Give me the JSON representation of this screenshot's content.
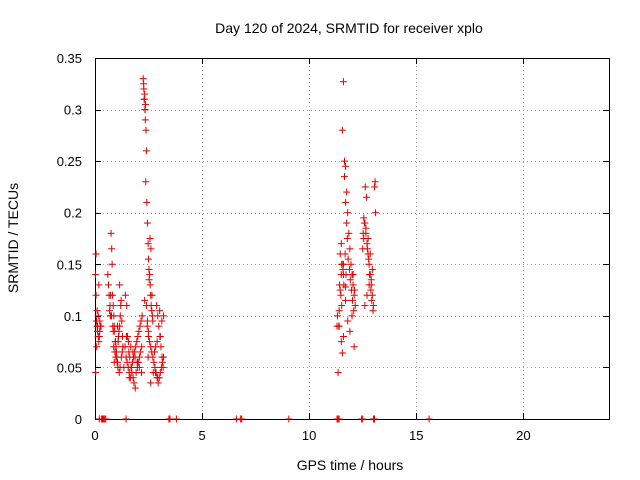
{
  "chart_data": {
    "type": "scatter",
    "title": "Day 120 of 2024, SRMTID for receiver xplo",
    "xlabel": "GPS time / hours",
    "ylabel": "SRMTID / TECUs",
    "xlim": [
      0,
      24
    ],
    "ylim": [
      0,
      0.35
    ],
    "x_ticks": [
      0,
      5,
      10,
      15,
      20
    ],
    "y_ticks": [
      0,
      0.05,
      0.1,
      0.15,
      0.2,
      0.25,
      0.3,
      0.35
    ],
    "x_tick_labels": [
      "0",
      "5",
      "10",
      "15",
      "20"
    ],
    "y_tick_labels": [
      "0",
      "0.05",
      "0.1",
      "0.15",
      "0.2",
      "0.25",
      "0.3",
      "0.35"
    ],
    "grid": true,
    "marker": "plus",
    "color": "#e00000",
    "series": [
      {
        "x": [
          0.02,
          0.05,
          0.07,
          0.1,
          0.12,
          0.15,
          0.18,
          0.2,
          0.22,
          0.25,
          0.05,
          0.1,
          0.15,
          0.08,
          0.12,
          0.18,
          0.22,
          0.03,
          0.28,
          0.6,
          0.63,
          0.66,
          0.7,
          0.72,
          0.75,
          0.78,
          0.8,
          0.82,
          0.85,
          0.88,
          0.9,
          0.92,
          0.95,
          0.98,
          1.0,
          1.02,
          1.05,
          1.08,
          1.1,
          1.12,
          1.15,
          1.18,
          1.2,
          1.22,
          1.25,
          1.28,
          1.3,
          0.68,
          0.73,
          0.77,
          0.83,
          0.87,
          0.93,
          0.97,
          1.03,
          1.07,
          1.13,
          1.17,
          1.23,
          1.27,
          1.4,
          1.45,
          1.5,
          1.55,
          1.6,
          1.65,
          1.7,
          1.75,
          1.8,
          1.85,
          1.9,
          1.95,
          2.0,
          2.05,
          2.1,
          2.15,
          2.2,
          1.42,
          1.48,
          1.52,
          1.58,
          1.62,
          1.68,
          1.72,
          1.78,
          1.82,
          1.88,
          1.92,
          1.98,
          2.02,
          2.08,
          2.12,
          2.18,
          1.47,
          1.57,
          1.67,
          1.77,
          1.87,
          1.97,
          2.07,
          2.17,
          2.25,
          2.28,
          2.3,
          2.33,
          2.35,
          2.38,
          2.4,
          2.32,
          2.36,
          2.27,
          2.3,
          2.34,
          2.37,
          2.42,
          2.45,
          2.48,
          2.5,
          2.52,
          2.55,
          2.58,
          2.6,
          2.62,
          2.65,
          2.68,
          2.7,
          2.44,
          2.49,
          2.53,
          2.57,
          2.61,
          2.66,
          2.4,
          2.45,
          2.5,
          2.55,
          2.6,
          2.65,
          2.7,
          2.75,
          2.8,
          2.85,
          2.9,
          2.95,
          3.0,
          3.05,
          3.1,
          3.15,
          3.2,
          2.78,
          2.83,
          2.88,
          2.93,
          2.98,
          3.03,
          3.08,
          3.13,
          3.18,
          2.82,
          2.92,
          3.02,
          3.12,
          0.85,
          0.95,
          1.15,
          2.32,
          2.48,
          2.6,
          2.72,
          0.9,
          1.05,
          1.35,
          1.6,
          2.0,
          2.9,
          3.05,
          3.2,
          11.3,
          11.35,
          11.4,
          11.45,
          11.5,
          11.55,
          11.6,
          11.65,
          11.7,
          11.75,
          11.8,
          11.85,
          11.9,
          11.95,
          12.0,
          12.05,
          12.1,
          12.15,
          11.32,
          11.38,
          11.42,
          11.48,
          11.52,
          11.58,
          11.62,
          11.68,
          11.72,
          11.78,
          11.82,
          11.88,
          11.92,
          11.98,
          12.02,
          12.08,
          11.4,
          11.5,
          11.6,
          11.7,
          11.8,
          11.9,
          12.0,
          12.1,
          11.55,
          11.6,
          11.65,
          11.7,
          11.75,
          11.5,
          11.45,
          11.6,
          11.7,
          11.58,
          11.52,
          12.12,
          12.05,
          12.5,
          12.55,
          12.6,
          12.65,
          12.7,
          12.75,
          12.8,
          12.85,
          12.9,
          12.95,
          13.0,
          12.52,
          12.58,
          12.62,
          12.68,
          12.72,
          12.78,
          12.82,
          12.88,
          12.92,
          12.98,
          12.55,
          12.65,
          12.75,
          12.85,
          12.95,
          13.05,
          13.08,
          13.1,
          12.6,
          12.7,
          12.8,
          12.9
        ],
        "y": [
          0.14,
          0.16,
          0.095,
          0.09,
          0.085,
          0.1,
          0.075,
          0.08,
          0.095,
          0.09,
          0.12,
          0.105,
          0.08,
          0.07,
          0.09,
          0.13,
          0.085,
          0.045,
          0.09,
          0.14,
          0.13,
          0.12,
          0.11,
          0.1,
          0.18,
          0.165,
          0.15,
          0.12,
          0.11,
          0.1,
          0.09,
          0.085,
          0.075,
          0.07,
          0.065,
          0.06,
          0.055,
          0.075,
          0.08,
          0.085,
          0.09,
          0.1,
          0.11,
          0.115,
          0.095,
          0.08,
          0.07,
          0.105,
          0.12,
          0.1,
          0.09,
          0.07,
          0.065,
          0.06,
          0.055,
          0.05,
          0.045,
          0.05,
          0.06,
          0.065,
          0.07,
          0.06,
          0.055,
          0.05,
          0.045,
          0.04,
          0.05,
          0.055,
          0.06,
          0.065,
          0.07,
          0.075,
          0.08,
          0.085,
          0.09,
          0.095,
          0.1,
          0.12,
          0.11,
          0.08,
          0.065,
          0.06,
          0.05,
          0.045,
          0.04,
          0.035,
          0.03,
          0.045,
          0.05,
          0.055,
          0.06,
          0.065,
          0.07,
          0.08,
          0.075,
          0.07,
          0.065,
          0.06,
          0.055,
          0.05,
          0.045,
          0.33,
          0.32,
          0.31,
          0.3,
          0.29,
          0.28,
          0.26,
          0.315,
          0.305,
          0.325,
          0.31,
          0.3,
          0.23,
          0.21,
          0.19,
          0.17,
          0.155,
          0.145,
          0.14,
          0.13,
          0.12,
          0.11,
          0.105,
          0.1,
          0.095,
          0.09,
          0.085,
          0.135,
          0.175,
          0.165,
          0.12,
          0.11,
          0.095,
          0.08,
          0.075,
          0.07,
          0.065,
          0.06,
          0.055,
          0.05,
          0.045,
          0.04,
          0.035,
          0.04,
          0.045,
          0.05,
          0.055,
          0.06,
          0.065,
          0.07,
          0.11,
          0.1,
          0.09,
          0.08,
          0.07,
          0.06,
          0.05,
          0.045,
          0.04,
          0.105,
          0.095,
          0.085,
          0.075,
          0.13,
          0.115,
          0.06,
          0.035,
          0.045,
          0.055,
          0.09,
          0.05,
          0.04,
          0.055,
          0.075,
          0.08,
          0.1,
          0.09,
          0.045,
          0.105,
          0.125,
          0.14,
          0.28,
          0.327,
          0.25,
          0.245,
          0.22,
          0.2,
          0.18,
          0.165,
          0.15,
          0.14,
          0.13,
          0.12,
          0.11,
          0.1,
          0.09,
          0.13,
          0.12,
          0.11,
          0.15,
          0.13,
          0.16,
          0.14,
          0.175,
          0.155,
          0.145,
          0.135,
          0.125,
          0.115,
          0.105,
          0.09,
          0.075,
          0.14,
          0.115,
          0.095,
          0.085,
          0.1,
          0.07,
          0.064,
          0.08,
          0.235,
          0.21,
          0.19,
          0.17,
          0.16,
          0.15,
          0.128,
          0.145,
          0.15,
          0.125,
          0.14,
          0.165,
          0.175,
          0.19,
          0.18,
          0.17,
          0.16,
          0.15,
          0.14,
          0.13,
          0.12,
          0.11,
          0.18,
          0.19,
          0.225,
          0.215,
          0.165,
          0.155,
          0.14,
          0.125,
          0.115,
          0.105,
          0.195,
          0.185,
          0.175,
          0.16,
          0.145,
          0.225,
          0.23,
          0.2,
          0.11,
          0.12,
          0.13,
          0.135
        ]
      }
    ],
    "zero_markers_x": [
      0.2,
      0.3,
      0.35,
      0.4,
      0.45,
      0.5,
      1.45,
      3.45,
      3.5,
      3.8,
      6.6,
      6.8,
      6.85,
      9.05,
      11.3,
      11.35,
      11.4,
      12.45,
      12.5,
      13.0,
      13.05,
      15.6
    ]
  }
}
